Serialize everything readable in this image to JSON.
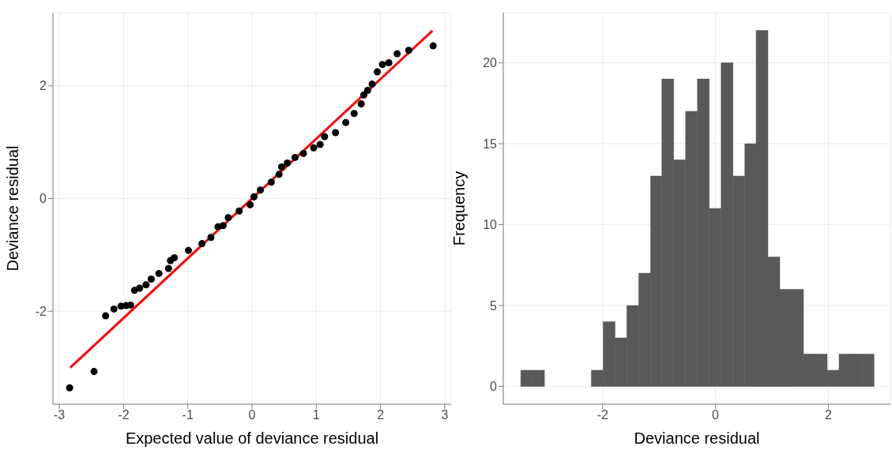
{
  "chart_data": [
    {
      "type": "scatter",
      "xlabel": "Expected value of deviance residual",
      "ylabel": "Deviance residual",
      "xlim": [
        -3.1,
        3.1
      ],
      "ylim": [
        -3.65,
        3.3
      ],
      "xticks": [
        -3,
        -2,
        -1,
        0,
        1,
        2,
        3
      ],
      "yticks": [
        -2,
        0,
        2
      ],
      "grid": true,
      "series": [
        {
          "type": "scatter",
          "marker": "circle",
          "color": "#000000",
          "x": [
            -2.84,
            -2.46,
            -2.28,
            -2.15,
            -2.04,
            -1.96,
            -1.89,
            -1.83,
            -1.75,
            -1.65,
            -1.57,
            -1.45,
            -1.3,
            -1.27,
            -1.21,
            -0.99,
            -0.78,
            -0.64,
            -0.53,
            -0.45,
            -0.37,
            -0.2,
            -0.03,
            0.03,
            0.13,
            0.3,
            0.42,
            0.46,
            0.55,
            0.67,
            0.8,
            0.96,
            1.06,
            1.13,
            1.3,
            1.46,
            1.59,
            1.7,
            1.74,
            1.8,
            1.87,
            1.95,
            2.03,
            2.13,
            2.26,
            2.44,
            2.82
          ],
          "values": [
            -3.36,
            -3.07,
            -2.08,
            -1.96,
            -1.91,
            -1.9,
            -1.89,
            -1.63,
            -1.59,
            -1.53,
            -1.43,
            -1.33,
            -1.24,
            -1.1,
            -1.05,
            -0.92,
            -0.8,
            -0.69,
            -0.5,
            -0.48,
            -0.34,
            -0.22,
            -0.11,
            0.03,
            0.15,
            0.29,
            0.43,
            0.56,
            0.63,
            0.73,
            0.8,
            0.9,
            0.96,
            1.1,
            1.17,
            1.35,
            1.51,
            1.68,
            1.84,
            1.92,
            2.03,
            2.25,
            2.38,
            2.41,
            2.57,
            2.63,
            2.71
          ]
        },
        {
          "type": "line",
          "color": "#ff0000",
          "x": [
            -2.83,
            2.81
          ],
          "values": [
            -3.0,
            2.98
          ]
        }
      ]
    },
    {
      "type": "histogram",
      "xlabel": "Deviance residual",
      "ylabel": "Frequency",
      "xlim": [
        -3.76,
        3.1
      ],
      "ylim": [
        -1.1,
        23.1
      ],
      "xticks": [
        -2,
        0,
        2
      ],
      "yticks": [
        0,
        5,
        10,
        15,
        20
      ],
      "grid": true,
      "color": "#595959",
      "bins": [
        -3.45,
        -3.24,
        -3.03,
        -2.2,
        -1.99,
        -1.78,
        -1.57,
        -1.36,
        -1.15,
        -0.95,
        -0.74,
        -0.53,
        -0.32,
        -0.11,
        0.1,
        0.31,
        0.52,
        0.72,
        0.93,
        1.14,
        1.35,
        1.56,
        1.77,
        1.98,
        2.19,
        2.4,
        2.6,
        2.81
      ],
      "values": [
        1,
        1,
        0,
        1,
        4,
        3,
        5,
        7,
        13,
        19,
        14,
        17,
        19,
        11,
        20,
        13,
        15,
        22,
        8,
        6,
        6,
        2,
        2,
        1,
        2,
        2,
        2
      ]
    }
  ]
}
